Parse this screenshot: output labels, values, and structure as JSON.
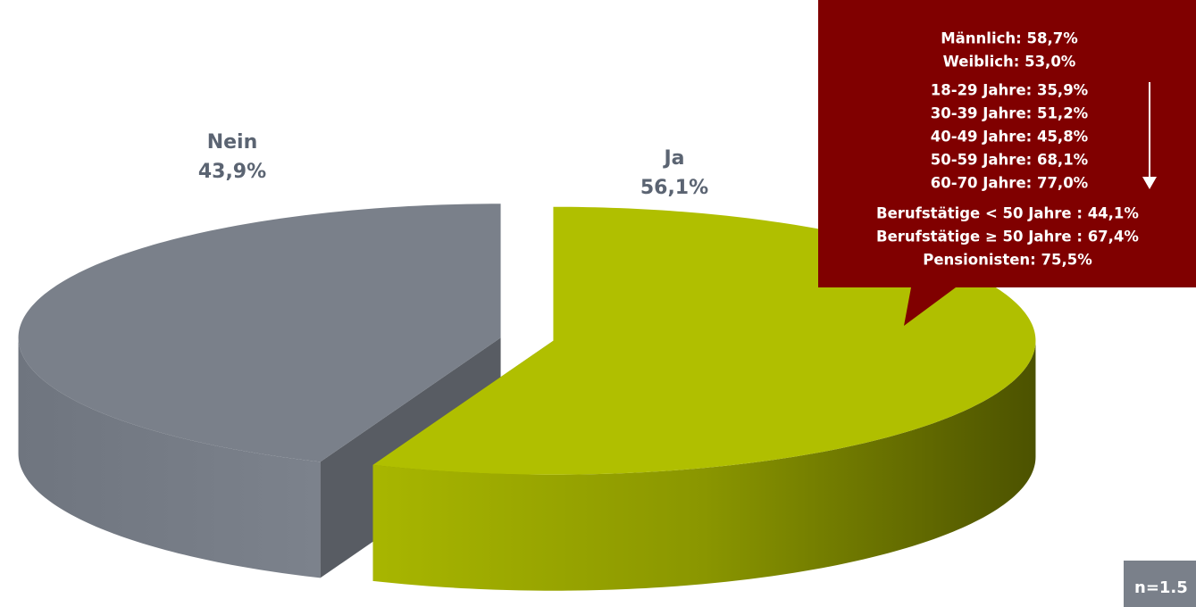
{
  "chart_data": {
    "type": "pie",
    "categories": [
      "Nein",
      "Ja"
    ],
    "values": [
      43.9,
      56.1
    ],
    "value_labels": [
      "43,9%",
      "56,1%"
    ],
    "colors": [
      "#7a808a",
      "#b0bf00"
    ],
    "annotations": [
      "Männlich: 58,7%",
      "Weiblich: 53,0%",
      "18-29 Jahre: 35,9%",
      "30-39 Jahre: 51,2%",
      "40-49 Jahre: 45,8%",
      "50-59 Jahre: 68,1%",
      "60-70 Jahre: 77,0%",
      "Berufstätige < 50 Jahre : 44,1%",
      "Berufstätige ≥ 50 Jahre : 67,4%",
      "Pensionisten: 75,5%"
    ],
    "note": "n=1.5"
  }
}
